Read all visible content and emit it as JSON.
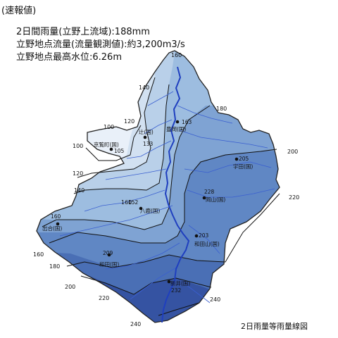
{
  "header": {
    "badge": "(速報値)",
    "line1": "2日間雨量(立野上流域):188mm",
    "line2": "立野地点流量(流量観測値):約3,200m3/s",
    "line3": "立野地点最高水位:6.26m"
  },
  "map_title": "2日雨量等雨量線図",
  "contours": [
    {
      "level": "100",
      "color": "#e9f0f9"
    },
    {
      "level": "120",
      "color": "#d2e1f1"
    },
    {
      "level": "140",
      "color": "#b9d0e9"
    },
    {
      "level": "160",
      "color": "#9dbde0"
    },
    {
      "level": "180",
      "color": "#7fa3d3"
    },
    {
      "level": "200",
      "color": "#6087c4"
    },
    {
      "level": "220",
      "color": "#4a6fb5"
    },
    {
      "level": "240",
      "color": "#3553a2"
    }
  ],
  "contour_labels": [
    "160",
    "140",
    "180",
    "100",
    "120",
    "200",
    "100",
    "120",
    "140",
    "220",
    "160",
    "160",
    "180",
    "200",
    "220",
    "240",
    "240"
  ],
  "stations": [
    {
      "name": "京覧町(国)",
      "value": "105"
    },
    {
      "name": "辻(国)",
      "value": "133"
    },
    {
      "name": "豊岡(国)",
      "value": "163"
    },
    {
      "name": "宇田(国)",
      "value": "205"
    },
    {
      "name": "岡山(国)",
      "value": "228"
    },
    {
      "name": "八鹿(国)",
      "value": "152"
    },
    {
      "name": "出合(国)",
      "value": "160"
    },
    {
      "name": "和田山(国)",
      "value": "203"
    },
    {
      "name": "和田(国)",
      "value": "209"
    },
    {
      "name": "新井(国)",
      "value": "232"
    }
  ],
  "colors": {
    "river": "#1f3fbf",
    "tributary": "#3a5fd0",
    "outline": "#222222"
  }
}
